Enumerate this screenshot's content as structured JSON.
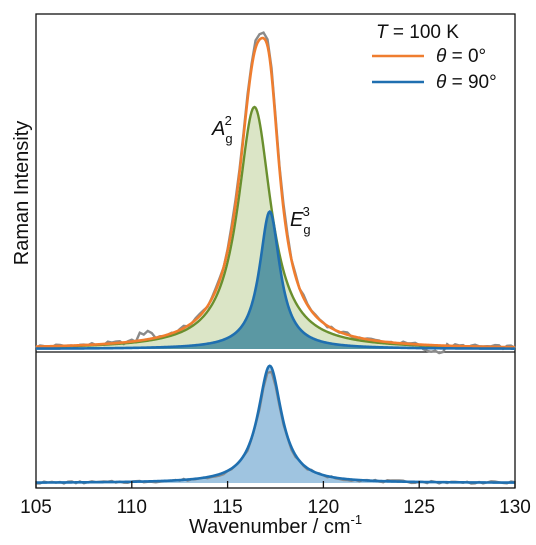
{
  "chart_data": {
    "type": "line",
    "xlabel": "Wavenumber / cm",
    "xlabel_sup": "-1",
    "ylabel": "Raman Intensity",
    "xlim": [
      105,
      130
    ],
    "xticks": [
      "105",
      "110",
      "115",
      "120",
      "125",
      "130"
    ],
    "xtick_values": [
      105,
      110,
      115,
      120,
      125,
      130
    ],
    "legend": {
      "position": "top-right",
      "header": {
        "italic": "T",
        "text": " = 100 K"
      },
      "entries": [
        {
          "symbol": "θ",
          "text": " = 0°",
          "color": "#ef7d2f"
        },
        {
          "symbol": "θ",
          "text": " = 90°",
          "color": "#1f6fb0"
        }
      ]
    },
    "annotations": [
      {
        "text": "A",
        "sub": "g",
        "sup": "2"
      },
      {
        "text": "E",
        "sub": "g",
        "sup": "3"
      }
    ],
    "colors": {
      "data_gray": "#8a8a8a",
      "theta0": "#ef7d2f",
      "theta90": "#1f6fb0",
      "ag_line": "#6a8f2e",
      "ag_fill": "#dbe5c6",
      "eg_fill": "#4c8f9e",
      "eg_fill_lower": "#9fc4e0"
    },
    "panels": [
      {
        "name": "theta-0",
        "ylim": [
          0,
          1.0
        ],
        "components": [
          {
            "name": "A_g^2",
            "center": 116.4,
            "amplitude": 0.74,
            "width": 1.05
          },
          {
            "name": "E_g^3",
            "center": 117.2,
            "amplitude": 0.42,
            "width": 0.65
          }
        ],
        "fit_peak": 0.96,
        "raw_peak": 0.99
      },
      {
        "name": "theta-90",
        "ylim": [
          0,
          1.0
        ],
        "components": [
          {
            "name": "E_g^3",
            "center": 117.2,
            "amplitude": 0.93,
            "width": 0.75
          }
        ],
        "fit_peak": 0.93,
        "raw_peak": 0.89
      }
    ]
  }
}
